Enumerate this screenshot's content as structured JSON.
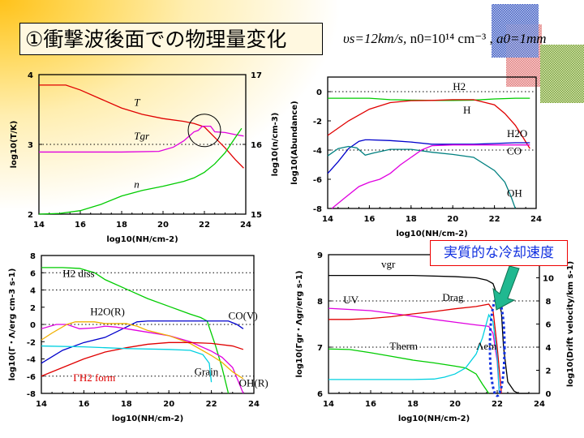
{
  "slide": {
    "title": "①衝撃波後面での物理量変化",
    "params": {
      "vs": "υs=12km/s,",
      "n0": "n0=10¹⁴ cm⁻³ ,",
      "a0": "a0=1mm"
    },
    "callout": "実質的な冷却速度",
    "colors": {
      "red": "#e00000",
      "green": "#00cc00",
      "magenta": "#e000e0",
      "blue": "#0000cc",
      "teal": "#008080",
      "cyan": "#00d0e0",
      "orange": "#f0b000",
      "black": "#000000",
      "callout_arrow": "#20b890"
    }
  },
  "chart_data": [
    {
      "id": "temperature-density",
      "type": "line",
      "xlabel": "log10(NH/cm-2)",
      "ylabel": "log10(T/K)",
      "y2label": "log10(n/cm-3)",
      "xlim": [
        14,
        24
      ],
      "ylim": [
        2,
        4
      ],
      "y2lim": [
        15,
        17
      ],
      "xticks": [
        14,
        16,
        18,
        20,
        22,
        24
      ],
      "yticks": [
        2,
        3,
        4
      ],
      "y2ticks": [
        15,
        16,
        17
      ],
      "hlines": [
        3
      ],
      "annotations": [
        {
          "text": "T",
          "x": 18.6,
          "y": 3.55
        },
        {
          "text": "Tgr",
          "x": 18.6,
          "y": 3.07
        },
        {
          "text": "n",
          "x": 18.6,
          "y": 2.38
        }
      ],
      "highlight_circle": {
        "x": 22.0,
        "y": 3.2
      },
      "series": [
        {
          "name": "T",
          "axis": "left",
          "color": "#e00000",
          "x": [
            14,
            15.3,
            16,
            17,
            18,
            19,
            20,
            21,
            21.5,
            22,
            22.5,
            23,
            23.5,
            23.9
          ],
          "y": [
            3.85,
            3.85,
            3.78,
            3.65,
            3.52,
            3.43,
            3.37,
            3.33,
            3.3,
            3.25,
            3.1,
            2.95,
            2.78,
            2.66
          ]
        },
        {
          "name": "Tgr",
          "axis": "left",
          "color": "#e000e0",
          "x": [
            14,
            16,
            18,
            19.8,
            20.5,
            21,
            21.5,
            21.7,
            21.9,
            22.3,
            22.5,
            23,
            23.5,
            23.9
          ],
          "y": [
            2.89,
            2.89,
            2.89,
            2.9,
            2.96,
            3.05,
            3.18,
            3.2,
            3.26,
            3.26,
            3.18,
            3.17,
            3.14,
            3.12
          ]
        },
        {
          "name": "n",
          "axis": "right",
          "color": "#00cc00",
          "x": [
            14,
            15,
            16,
            17,
            18,
            19,
            20,
            21,
            21.5,
            22,
            22.5,
            23,
            23.5,
            23.8
          ],
          "y": [
            15.0,
            15.01,
            15.05,
            15.14,
            15.26,
            15.34,
            15.4,
            15.47,
            15.52,
            15.6,
            15.72,
            15.88,
            16.1,
            16.23
          ]
        }
      ]
    },
    {
      "id": "abundance",
      "type": "line",
      "xlabel": "log10(NH/cm-2)",
      "ylabel": "log10(Abundance)",
      "xlim": [
        14,
        24
      ],
      "ylim": [
        -8,
        1
      ],
      "xticks": [
        14,
        16,
        18,
        20,
        22,
        24
      ],
      "yticks": [
        -8,
        -6,
        -4,
        -2,
        0
      ],
      "hlines": [
        0,
        -4
      ],
      "annotations": [
        {
          "text": "H2",
          "x": 20,
          "y": 0.1
        },
        {
          "text": "H",
          "x": 20.5,
          "y": -1.5
        },
        {
          "text": "H2O",
          "x": 22.6,
          "y": -3.1
        },
        {
          "text": "CO",
          "x": 22.6,
          "y": -4.3
        },
        {
          "text": "OH",
          "x": 22.6,
          "y": -7.2
        }
      ],
      "series": [
        {
          "name": "H2",
          "color": "#00cc00",
          "x": [
            14,
            16,
            17,
            18,
            19,
            20,
            21,
            22,
            23,
            23.7
          ],
          "y": [
            -0.45,
            -0.45,
            -0.55,
            -0.58,
            -0.6,
            -0.6,
            -0.58,
            -0.5,
            -0.45,
            -0.45
          ]
        },
        {
          "name": "H",
          "color": "#e00000",
          "x": [
            14,
            15,
            16,
            17,
            18,
            19,
            20,
            21,
            22,
            22.5,
            23,
            23.4,
            23.7
          ],
          "y": [
            -3.0,
            -2.0,
            -1.2,
            -0.75,
            -0.62,
            -0.6,
            -0.55,
            -0.55,
            -0.9,
            -1.5,
            -2.3,
            -3.2,
            -3.9
          ]
        },
        {
          "name": "H2O",
          "color": "#0000cc",
          "x": [
            14,
            14.5,
            15,
            15.5,
            15.8,
            16,
            17,
            18,
            19,
            20,
            21,
            22,
            23,
            23.7
          ],
          "y": [
            -5.6,
            -4.8,
            -3.9,
            -3.4,
            -3.3,
            -3.3,
            -3.35,
            -3.45,
            -3.6,
            -3.6,
            -3.6,
            -3.55,
            -3.5,
            -3.5
          ]
        },
        {
          "name": "CO",
          "color": "#008080",
          "x": [
            14,
            14.5,
            15,
            15.4,
            15.8,
            16.2,
            17,
            18,
            19,
            20,
            21,
            22,
            22.5,
            22.8,
            23
          ],
          "y": [
            -4.4,
            -3.9,
            -3.75,
            -3.85,
            -4.35,
            -4.2,
            -3.95,
            -3.95,
            -4.15,
            -4.3,
            -4.5,
            -5.4,
            -6.2,
            -7.2,
            -8.0
          ]
        },
        {
          "name": "OH",
          "color": "#e000e0",
          "x": [
            14.2,
            14.8,
            15.5,
            16,
            16.5,
            17,
            17.5,
            18,
            18.5,
            19,
            20,
            21,
            22,
            23,
            23.7
          ],
          "y": [
            -8.0,
            -7.3,
            -6.5,
            -6.2,
            -6.0,
            -5.6,
            -5.0,
            -4.5,
            -4.0,
            -3.7,
            -3.65,
            -3.65,
            -3.65,
            -3.65,
            -3.65
          ]
        }
      ]
    },
    {
      "id": "heating-cooling",
      "type": "line",
      "xlabel": "log10(NH/cm-2)",
      "ylabel": "log10(Γ・Λ/erg cm-3 s-1)",
      "xlim": [
        14,
        24
      ],
      "ylim": [
        -8,
        8
      ],
      "xticks": [
        14,
        16,
        18,
        20,
        22,
        24
      ],
      "yticks": [
        -8,
        -6,
        -4,
        -2,
        0,
        2,
        4,
        6,
        8
      ],
      "hlines": [
        6,
        4,
        0,
        -6
      ],
      "annotations": [
        {
          "text": "H2 diss",
          "x": 15,
          "y": 5.5
        },
        {
          "text": "H2O(R)",
          "x": 16.3,
          "y": 1.1
        },
        {
          "text": "CO(V)",
          "x": 22.8,
          "y": 0.6
        },
        {
          "text": "Grain",
          "x": 21.2,
          "y": -5.9
        },
        {
          "text": "OH(R)",
          "x": 23.3,
          "y": -7.2
        },
        {
          "text": "ΓH2 form",
          "x": 15.5,
          "y": -6.6
        }
      ],
      "series": [
        {
          "name": "H2 diss",
          "color": "#00cc00",
          "x": [
            14,
            15,
            15.8,
            16.5,
            17,
            18,
            19,
            20,
            21,
            21.5,
            21.8,
            22.2,
            22.5,
            22.8
          ],
          "y": [
            6.6,
            6.6,
            6.5,
            6.0,
            5.2,
            4.1,
            3.0,
            2.1,
            1.2,
            0.8,
            0.4,
            -2.5,
            -5.0,
            -8.0
          ]
        },
        {
          "name": "CO(V)",
          "color": "#0000cc",
          "x": [
            14,
            15,
            16,
            17,
            18,
            18.5,
            19,
            20,
            21,
            22,
            22.8,
            23.2,
            23.5
          ],
          "y": [
            -4.5,
            -3.0,
            -2.1,
            -1.5,
            -0.3,
            0.3,
            0.4,
            0.4,
            0.4,
            0.4,
            0.4,
            0.0,
            -0.5
          ]
        },
        {
          "name": "H2O(R)",
          "color": "#e000e0",
          "x": [
            14,
            14.7,
            15.2,
            15.8,
            16.5,
            17,
            17.5,
            18,
            19,
            20,
            21,
            22,
            22.5,
            23,
            23.5
          ],
          "y": [
            -0.5,
            0.0,
            0.0,
            -0.5,
            -0.4,
            -0.2,
            -0.3,
            -0.5,
            -0.9,
            -1.3,
            -2.0,
            -3.1,
            -3.8,
            -5.0,
            -8.0
          ]
        },
        {
          "name": "OH(R)",
          "color": "#f0b000",
          "x": [
            14,
            14.5,
            15.2,
            15.6,
            16.5,
            17,
            18,
            18.5,
            19,
            20,
            21,
            22,
            22.5,
            23,
            23.5
          ],
          "y": [
            -1.8,
            -1.0,
            0.0,
            0.3,
            0.3,
            0.1,
            0.1,
            -0.2,
            -0.7,
            -1.3,
            -2.2,
            -3.6,
            -4.4,
            -5.5,
            -6.3
          ]
        },
        {
          "name": "ΓH2 form",
          "color": "#e00000",
          "x": [
            14,
            15,
            16,
            17,
            18,
            19,
            20,
            21,
            22,
            23,
            23.5
          ],
          "y": [
            -6.0,
            -5.0,
            -4.0,
            -3.2,
            -2.7,
            -2.3,
            -2.1,
            -2.1,
            -2.2,
            -2.5,
            -2.9
          ]
        },
        {
          "name": "Grain",
          "color": "#00d0e0",
          "x": [
            14,
            16,
            18,
            20,
            21,
            21.6,
            21.9,
            22.0
          ],
          "y": [
            -2.5,
            -2.6,
            -2.8,
            -2.9,
            -3.0,
            -3.5,
            -4.5,
            -6.7
          ]
        }
      ]
    },
    {
      "id": "gas-grain",
      "type": "line",
      "xlabel": "log10(NH/cm-2)",
      "ylabel": "log10(Γgr・Λgr/erg s-1)",
      "y2label": "log10(Drift velocity/km s-1)",
      "xlim": [
        14,
        24
      ],
      "ylim": [
        6,
        9
      ],
      "y2lim": [
        0,
        12
      ],
      "xticks": [
        14,
        16,
        18,
        20,
        22,
        24
      ],
      "yticks": [
        6,
        7,
        8,
        9
      ],
      "y2ticks": [
        0,
        2,
        4,
        6,
        8,
        10
      ],
      "hlines": [
        8,
        7
      ],
      "annotations": [
        {
          "text": "vgr",
          "x": 16.5,
          "y": 8.72
        },
        {
          "text": "UV",
          "x": 14.7,
          "y": 7.95
        },
        {
          "text": "Drag",
          "x": 19.4,
          "y": 8.0
        },
        {
          "text": "Therm",
          "x": 16.9,
          "y": 6.95
        },
        {
          "text": "Λem",
          "x": 21.0,
          "y": 6.95
        }
      ],
      "highlight_ellipse": {
        "x": 22.0,
        "y": 7.0
      },
      "series": [
        {
          "name": "vgr",
          "axis": "right",
          "color": "#000000",
          "x": [
            14,
            16,
            18,
            20,
            21,
            21.5,
            21.8,
            22.0,
            22.2,
            22.3,
            22.5,
            22.8,
            23,
            23.5
          ],
          "y": [
            10.2,
            10.2,
            10.2,
            10.1,
            10.0,
            9.8,
            9.5,
            8.5,
            7.0,
            4.0,
            1.0,
            0.2,
            0.0,
            0.0
          ]
        },
        {
          "name": "UV",
          "color": "#e000e0",
          "x": [
            14,
            16,
            17,
            18,
            19,
            20,
            21,
            21.6,
            21.8,
            22.0,
            22.1
          ],
          "y": [
            7.84,
            7.79,
            7.73,
            7.67,
            7.6,
            7.54,
            7.48,
            7.45,
            7.3,
            6.7,
            6.0
          ]
        },
        {
          "name": "Drag",
          "color": "#e00000",
          "x": [
            14,
            15,
            16,
            17,
            18,
            19,
            20,
            21,
            21.6,
            21.8,
            22.0,
            22.2
          ],
          "y": [
            7.6,
            7.6,
            7.62,
            7.66,
            7.72,
            7.77,
            7.83,
            7.88,
            7.93,
            7.8,
            7.0,
            6.0
          ]
        },
        {
          "name": "Therm",
          "color": "#00cc00",
          "x": [
            14,
            15,
            16,
            17,
            18,
            19,
            20,
            20.5,
            21,
            21.3,
            21.6
          ],
          "y": [
            6.96,
            6.95,
            6.88,
            6.8,
            6.72,
            6.66,
            6.59,
            6.55,
            6.42,
            6.2,
            6.0
          ]
        },
        {
          "name": "Λem",
          "color": "#00d0e0",
          "x": [
            14,
            16,
            18,
            19,
            19.5,
            20,
            20.5,
            21,
            21.3,
            21.6,
            21.8,
            22.0,
            22.1
          ],
          "y": [
            6.3,
            6.3,
            6.3,
            6.31,
            6.35,
            6.42,
            6.55,
            6.85,
            7.2,
            7.7,
            7.55,
            6.8,
            6.0
          ]
        }
      ]
    }
  ]
}
